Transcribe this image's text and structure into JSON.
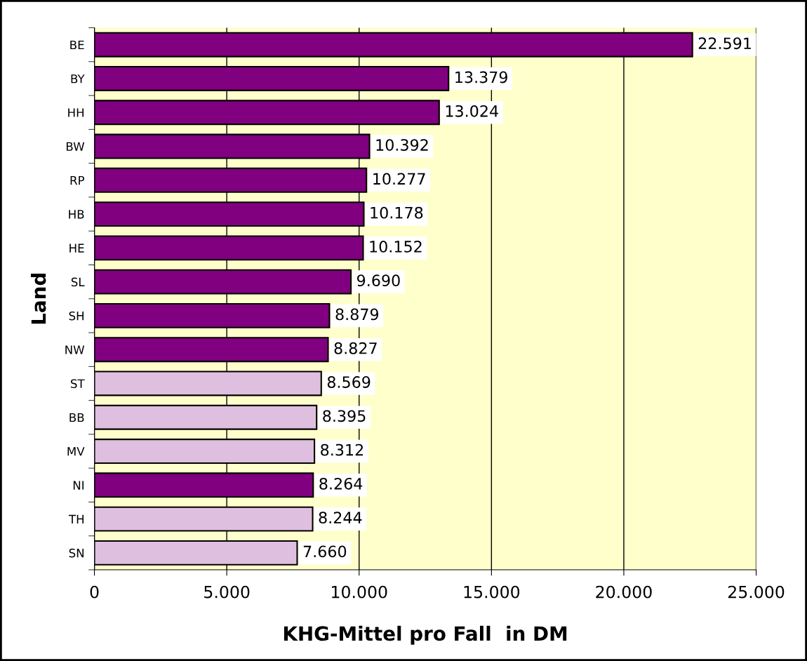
{
  "chart_data": {
    "type": "bar",
    "orientation": "horizontal",
    "xlabel": "KHG-Mittel pro Fall  in DM",
    "ylabel": "Land",
    "categories": [
      "BE",
      "BY",
      "HH",
      "BW",
      "RP",
      "HB",
      "HE",
      "SL",
      "SH",
      "NW",
      "ST",
      "BB",
      "MV",
      "NI",
      "TH",
      "SN"
    ],
    "values": [
      22591,
      13379,
      13024,
      10392,
      10277,
      10178,
      10152,
      9690,
      8879,
      8827,
      8569,
      8395,
      8312,
      8264,
      8244,
      7660
    ],
    "colors": [
      "#800080",
      "#800080",
      "#800080",
      "#800080",
      "#800080",
      "#800080",
      "#800080",
      "#800080",
      "#800080",
      "#800080",
      "#dfbfdf",
      "#dfbfdf",
      "#dfbfdf",
      "#800080",
      "#dfbfdf",
      "#dfbfdf"
    ],
    "value_labels": [
      "22.591",
      "13.379",
      "13.024",
      "10.392",
      "10.277",
      "10.178",
      "10.152",
      "9.690",
      "8.879",
      "8.827",
      "8.569",
      "8.395",
      "8.312",
      "8.264",
      "8.244",
      "7.660"
    ],
    "xlim": [
      0,
      25000
    ],
    "xticks": [
      0,
      {
        "value": 5000,
        "label": "5.000"
      },
      {
        "value": 10000,
        "label": "10.000"
      },
      {
        "value": 15000,
        "label": "15.000"
      },
      {
        "value": 20000,
        "label": "20.000"
      },
      {
        "value": 25000,
        "label": "25.000"
      }
    ],
    "grid": "x"
  }
}
